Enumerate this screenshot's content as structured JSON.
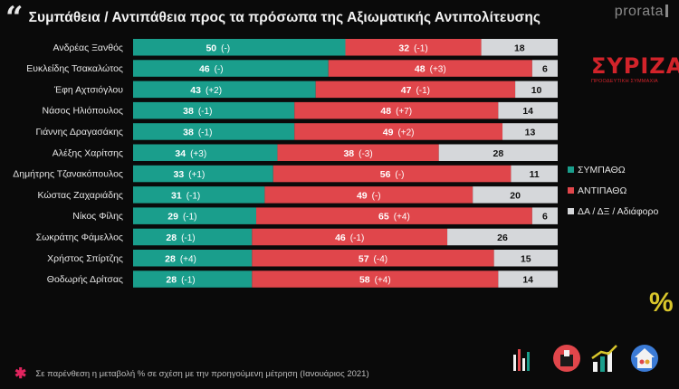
{
  "header": {
    "title": "Συμπάθεια / Αντιπάθεια προς τα πρόσωπα της Αξιωματικής Αντιπολίτευσης",
    "brand": "prorata"
  },
  "party_logo": {
    "name": "ΣΥΡΙΖΑ",
    "subtitle": "ΠΡΟΟΔΕΥΤΙΚΗ ΣΥΜΜΑΧΙΑ"
  },
  "colors": {
    "sympathy": "#1a9e8c",
    "antipathy": "#e0464b",
    "neutral": "#d5d7da",
    "background": "#0a0a0a"
  },
  "legend": [
    {
      "label": "ΣΥΜΠΑΘΩ",
      "color": "#1a9e8c"
    },
    {
      "label": "ΑΝΤΙΠΑΘΩ",
      "color": "#e0464b"
    },
    {
      "label": "ΔΑ / ΔΞ / Αδιάφορο",
      "color": "#d5d7da"
    }
  ],
  "chart_data": {
    "type": "bar",
    "orientation": "horizontal",
    "stacked": true,
    "title": "Συμπάθεια / Αντιπάθεια προς τα πρόσωπα της Αξιωματικής Αντιπολίτευσης",
    "categories": [
      "Ανδρέας Ξανθός",
      "Ευκλείδης Τσακαλώτος",
      "Έφη Αχτσιόγλου",
      "Νάσος Ηλιόπουλος",
      "Γιάννης Δραγασάκης",
      "Αλέξης Χαρίτσης",
      "Δημήτρης Τζανακόπουλος",
      "Κώστας Ζαχαριάδης",
      "Νίκος Φίλης",
      "Σωκράτης Φάμελλος",
      "Χρήστος Σπίρτζης",
      "Θοδωρής Δρίτσας"
    ],
    "series": [
      {
        "name": "ΣΥΜΠΑΘΩ",
        "values": [
          50,
          46,
          43,
          38,
          38,
          34,
          33,
          31,
          29,
          28,
          28,
          28
        ],
        "changes": [
          "(-)",
          "(-)",
          "(+2)",
          "(-1)",
          "(-1)",
          "(+3)",
          "(+1)",
          "(-1)",
          "(-1)",
          "(-1)",
          "(+4)",
          "(-1)"
        ]
      },
      {
        "name": "ΑΝΤΙΠΑΘΩ",
        "values": [
          32,
          48,
          47,
          48,
          49,
          38,
          56,
          49,
          65,
          46,
          57,
          58
        ],
        "changes": [
          "(-1)",
          "(+3)",
          "(-1)",
          "(+7)",
          "(+2)",
          "(-3)",
          "(-)",
          "(-)",
          "(+4)",
          "(-1)",
          "(-4)",
          "(+4)"
        ]
      },
      {
        "name": "ΔΑ / ΔΞ / Αδιάφορο",
        "values": [
          18,
          6,
          10,
          14,
          13,
          28,
          11,
          20,
          6,
          26,
          15,
          14
        ]
      }
    ],
    "xlim": [
      0,
      100
    ],
    "unit": "%"
  },
  "footnote": "Σε παρένθεση η μεταβολή % σε σχέση με την προηγούμενη μέτρηση (Ιανουάριος 2021)"
}
